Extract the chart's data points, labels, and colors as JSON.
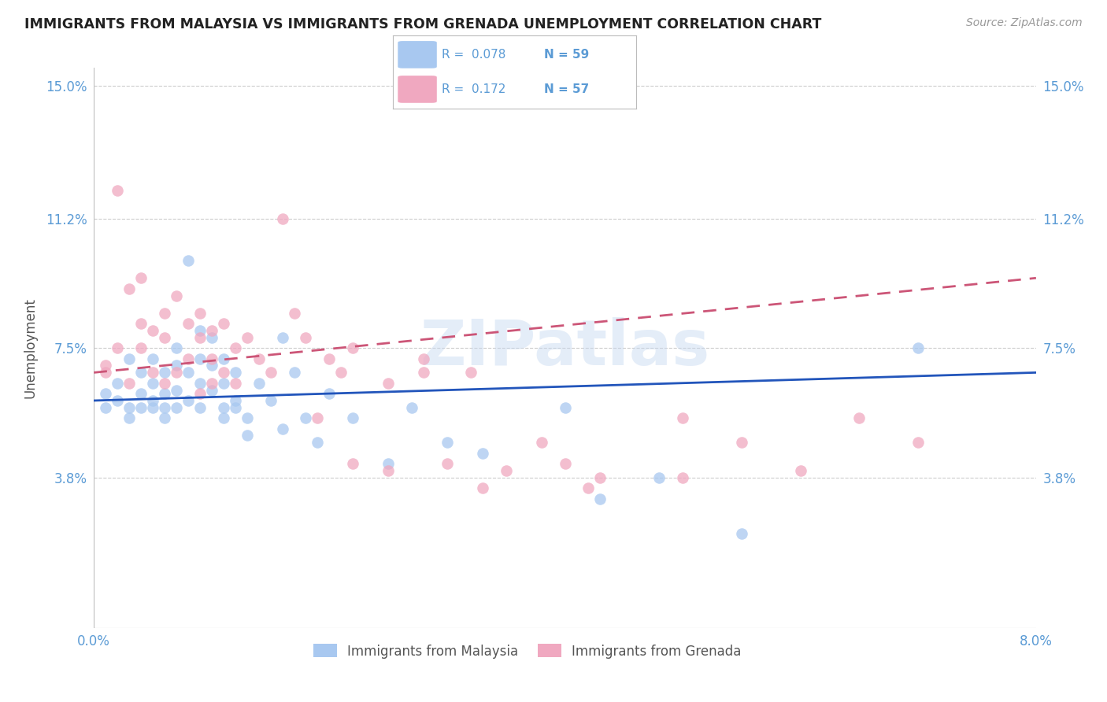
{
  "title": "IMMIGRANTS FROM MALAYSIA VS IMMIGRANTS FROM GRENADA UNEMPLOYMENT CORRELATION CHART",
  "source": "Source: ZipAtlas.com",
  "ylabel": "Unemployment",
  "xlim": [
    0.0,
    0.08
  ],
  "ylim": [
    -0.005,
    0.155
  ],
  "yticks": [
    0.0,
    0.038,
    0.075,
    0.112,
    0.15
  ],
  "ytick_labels": [
    "",
    "3.8%",
    "7.5%",
    "11.2%",
    "15.0%"
  ],
  "xticks": [
    0.0,
    0.016,
    0.032,
    0.048,
    0.064,
    0.08
  ],
  "xtick_labels": [
    "0.0%",
    "",
    "",
    "",
    "",
    "8.0%"
  ],
  "malaysia_color": "#a8c8f0",
  "grenada_color": "#f0a8c0",
  "malaysia_line_color": "#2255bb",
  "grenada_line_color": "#cc5577",
  "watermark": "ZIPatlas",
  "malaysia_scatter_x": [
    0.001,
    0.001,
    0.002,
    0.002,
    0.003,
    0.003,
    0.003,
    0.004,
    0.004,
    0.004,
    0.005,
    0.005,
    0.005,
    0.005,
    0.006,
    0.006,
    0.006,
    0.006,
    0.007,
    0.007,
    0.007,
    0.007,
    0.008,
    0.008,
    0.008,
    0.009,
    0.009,
    0.009,
    0.009,
    0.01,
    0.01,
    0.01,
    0.011,
    0.011,
    0.011,
    0.011,
    0.012,
    0.012,
    0.012,
    0.013,
    0.013,
    0.014,
    0.015,
    0.016,
    0.016,
    0.017,
    0.018,
    0.019,
    0.02,
    0.022,
    0.025,
    0.027,
    0.03,
    0.033,
    0.04,
    0.043,
    0.048,
    0.055,
    0.07
  ],
  "malaysia_scatter_y": [
    0.058,
    0.062,
    0.06,
    0.065,
    0.055,
    0.058,
    0.072,
    0.062,
    0.068,
    0.058,
    0.06,
    0.065,
    0.072,
    0.058,
    0.062,
    0.068,
    0.055,
    0.058,
    0.075,
    0.07,
    0.063,
    0.058,
    0.1,
    0.068,
    0.06,
    0.08,
    0.072,
    0.065,
    0.058,
    0.078,
    0.07,
    0.063,
    0.072,
    0.065,
    0.058,
    0.055,
    0.068,
    0.06,
    0.058,
    0.055,
    0.05,
    0.065,
    0.06,
    0.078,
    0.052,
    0.068,
    0.055,
    0.048,
    0.062,
    0.055,
    0.042,
    0.058,
    0.048,
    0.045,
    0.058,
    0.032,
    0.038,
    0.022,
    0.075
  ],
  "grenada_scatter_x": [
    0.001,
    0.001,
    0.002,
    0.002,
    0.003,
    0.003,
    0.004,
    0.004,
    0.004,
    0.005,
    0.005,
    0.006,
    0.006,
    0.006,
    0.007,
    0.007,
    0.008,
    0.008,
    0.009,
    0.009,
    0.009,
    0.01,
    0.01,
    0.01,
    0.011,
    0.011,
    0.012,
    0.012,
    0.013,
    0.014,
    0.015,
    0.016,
    0.017,
    0.018,
    0.019,
    0.02,
    0.021,
    0.022,
    0.025,
    0.028,
    0.03,
    0.033,
    0.038,
    0.04,
    0.043,
    0.05,
    0.055,
    0.06,
    0.065,
    0.07,
    0.05,
    0.042,
    0.035,
    0.032,
    0.028,
    0.025,
    0.022
  ],
  "grenada_scatter_y": [
    0.068,
    0.07,
    0.075,
    0.12,
    0.065,
    0.092,
    0.082,
    0.075,
    0.095,
    0.08,
    0.068,
    0.085,
    0.078,
    0.065,
    0.09,
    0.068,
    0.082,
    0.072,
    0.085,
    0.078,
    0.062,
    0.08,
    0.072,
    0.065,
    0.082,
    0.068,
    0.075,
    0.065,
    0.078,
    0.072,
    0.068,
    0.112,
    0.085,
    0.078,
    0.055,
    0.072,
    0.068,
    0.075,
    0.065,
    0.068,
    0.042,
    0.035,
    0.048,
    0.042,
    0.038,
    0.055,
    0.048,
    0.04,
    0.055,
    0.048,
    0.038,
    0.035,
    0.04,
    0.068,
    0.072,
    0.04,
    0.042
  ]
}
